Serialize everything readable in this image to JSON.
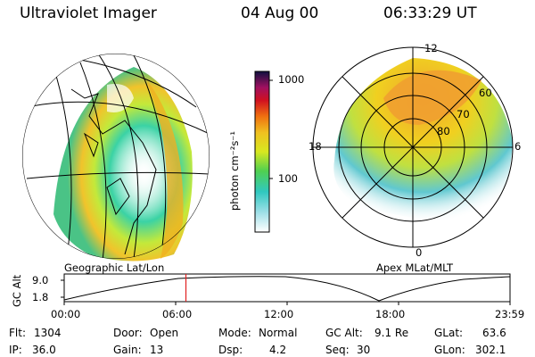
{
  "header": {
    "title": "Ultraviolet Imager",
    "date": "04 Aug 00",
    "time": "06:33:29 UT"
  },
  "colorbar": {
    "unit_label": "photon cm⁻²s⁻¹",
    "ticks": [
      "1000",
      "100"
    ]
  },
  "left_panel": {
    "label": "Geographic Lat/Lon"
  },
  "right_panel": {
    "label": "Apex MLat/MLT",
    "mlt_labels": {
      "top": "12",
      "left": "18",
      "right": "6",
      "bottom": "0"
    },
    "lat_labels": [
      "60",
      "70",
      "80"
    ]
  },
  "timeline": {
    "ylabel": "GC Alt",
    "y_ticks": [
      "9.0",
      "1.8"
    ],
    "x_ticks": [
      "00:00",
      "06:00",
      "12:00",
      "18:00",
      "23:59"
    ],
    "current_time_fraction": 0.273
  },
  "info": {
    "flt_label": "Flt:",
    "flt_value": "1304",
    "ip_label": "IP:",
    "ip_value": "36.0",
    "door_label": "Door:",
    "door_value": "Open",
    "gain_label": "Gain:",
    "gain_value": "13",
    "mode_label": "Mode:",
    "mode_value": "Normal",
    "dsp_label": "Dsp:",
    "dsp_value": "4.2",
    "gcalt_label": "GC Alt:",
    "gcalt_value": "9.1 Re",
    "seq_label": "Seq:",
    "seq_value": "30",
    "glat_label": "GLat:",
    "glat_value": "63.6",
    "glon_label": "GLon:",
    "glon_value": "302.1"
  },
  "colors": {
    "cursor": "#e02020",
    "aurora_low": "#30d080",
    "aurora_mid": "#f0e020",
    "aurora_high": "#f0a020"
  }
}
